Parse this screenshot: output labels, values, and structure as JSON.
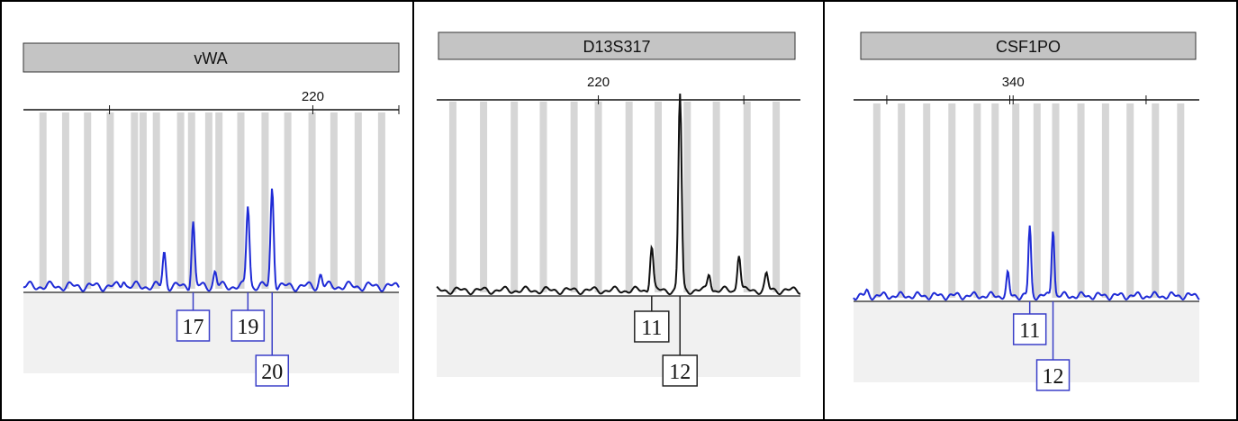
{
  "colors": {
    "blue_trace": "#1f2bd6",
    "black_trace": "#111111",
    "bin": "#d6d6d6",
    "header": "#c4c4c4",
    "blue_box": "#3a3fc8",
    "black_box": "#222222"
  },
  "chart_data": [
    {
      "type": "line",
      "title": "vWA",
      "trace_color": "blue",
      "x_range": [
        183,
        231
      ],
      "tick_labels": [
        "220"
      ],
      "tick_values": [
        220
      ],
      "minor_ticks": [
        194,
        231
      ],
      "bins": [
        185.5,
        188.4,
        191.2,
        194.1,
        197.2,
        198.3,
        200.0,
        203.1,
        204.5,
        206.7,
        208.0,
        210.8,
        213.9,
        216.8,
        219.9,
        222.7,
        225.8,
        228.8
      ],
      "peaks": [
        {
          "x": 201.0,
          "height": 0.14
        },
        {
          "x": 204.7,
          "height": 0.26
        },
        {
          "x": 207.5,
          "height": 0.06
        },
        {
          "x": 211.7,
          "height": 0.33
        },
        {
          "x": 214.8,
          "height": 0.4
        },
        {
          "x": 195.8,
          "height": 0.03
        },
        {
          "x": 221.0,
          "height": 0.05
        }
      ],
      "alleles": [
        {
          "label": "17",
          "x": 204.7,
          "row": 0
        },
        {
          "label": "19",
          "x": 211.7,
          "row": 0
        },
        {
          "label": "20",
          "x": 214.8,
          "row": 1
        }
      ]
    },
    {
      "type": "line",
      "title": "D13S317",
      "trace_color": "black",
      "x_range": [
        200,
        245
      ],
      "tick_labels": [
        "220"
      ],
      "tick_values": [
        220
      ],
      "minor_ticks": [
        238
      ],
      "bins": [
        202.0,
        205.8,
        209.6,
        213.2,
        217.0,
        220.0,
        223.8,
        227.4,
        231.0,
        234.6,
        238.4,
        242.0
      ],
      "peaks": [
        {
          "x": 226.6,
          "height": 0.23
        },
        {
          "x": 230.1,
          "height": 1.0
        },
        {
          "x": 233.7,
          "height": 0.09
        },
        {
          "x": 237.4,
          "height": 0.19
        },
        {
          "x": 240.8,
          "height": 0.08
        }
      ],
      "alleles": [
        {
          "label": "11",
          "x": 226.6,
          "row": 0
        },
        {
          "label": "12",
          "x": 230.1,
          "row": 1
        }
      ]
    },
    {
      "type": "line",
      "title": "CSF1PO",
      "trace_color": "blue",
      "x_range": [
        316,
        368
      ],
      "tick_labels": [
        "340"
      ],
      "tick_values": [
        340
      ],
      "minor_ticks": [
        321,
        339.5,
        360
      ],
      "bins": [
        319.5,
        323.2,
        327.0,
        330.8,
        334.6,
        337.3,
        340.4,
        343.6,
        346.4,
        350.2,
        353.9,
        357.6,
        361.4,
        365.2
      ],
      "peaks": [
        {
          "x": 339.2,
          "height": 0.11
        },
        {
          "x": 342.5,
          "height": 0.35
        },
        {
          "x": 346.0,
          "height": 0.35
        },
        {
          "x": 318.0,
          "height": 0.02
        }
      ],
      "alleles": [
        {
          "label": "11",
          "x": 342.5,
          "row": 0
        },
        {
          "label": "12",
          "x": 346.0,
          "row": 1
        }
      ]
    }
  ]
}
